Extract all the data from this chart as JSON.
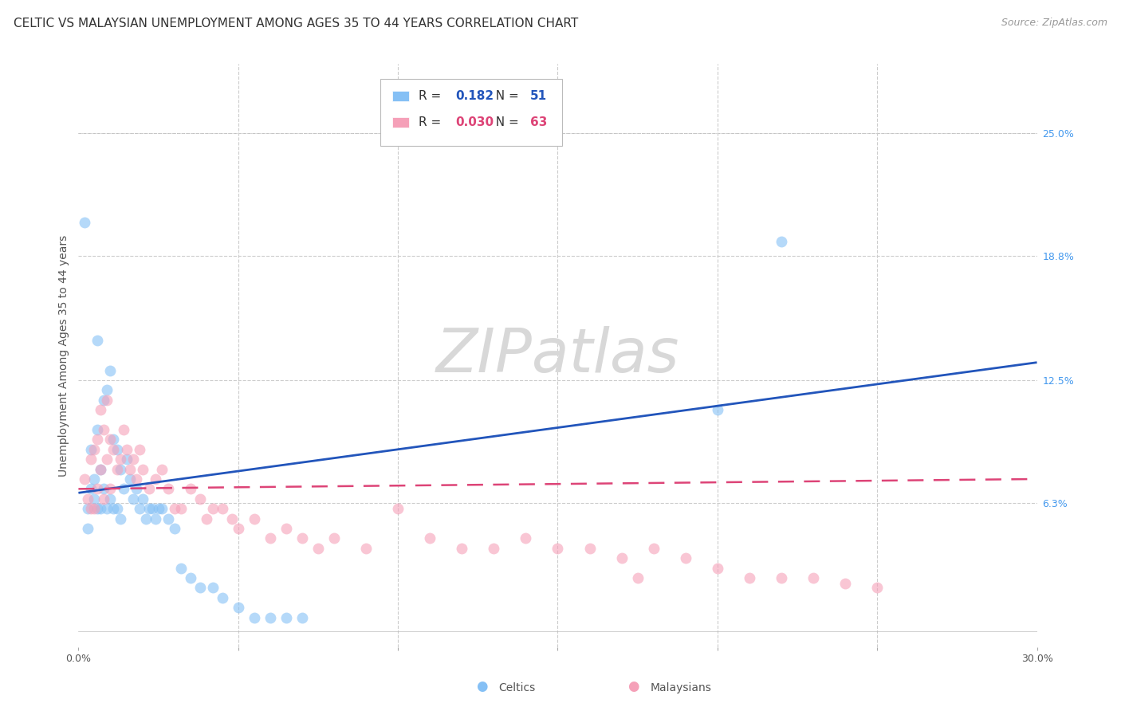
{
  "title": "CELTIC VS MALAYSIAN UNEMPLOYMENT AMONG AGES 35 TO 44 YEARS CORRELATION CHART",
  "source": "Source: ZipAtlas.com",
  "ylabel": "Unemployment Among Ages 35 to 44 years",
  "xlim": [
    0.0,
    0.3
  ],
  "ylim": [
    -0.01,
    0.285
  ],
  "xticks": [
    0.0,
    0.05,
    0.1,
    0.15,
    0.2,
    0.25,
    0.3
  ],
  "xtick_labels": [
    "0.0%",
    "",
    "",
    "",
    "",
    "",
    "30.0%"
  ],
  "right_yticks": [
    0.063,
    0.125,
    0.188,
    0.25
  ],
  "right_ytick_labels": [
    "6.3%",
    "12.5%",
    "18.8%",
    "25.0%"
  ],
  "celtics_color": "#85C0F5",
  "malaysians_color": "#F5A0B8",
  "celtics_line_color": "#2255BB",
  "malaysians_line_color": "#DD4477",
  "celtics_R": 0.182,
  "celtics_N": 51,
  "malaysians_R": 0.03,
  "malaysians_N": 63,
  "celtics_x": [
    0.002,
    0.003,
    0.003,
    0.004,
    0.004,
    0.005,
    0.005,
    0.006,
    0.006,
    0.006,
    0.007,
    0.007,
    0.008,
    0.008,
    0.009,
    0.009,
    0.01,
    0.01,
    0.011,
    0.011,
    0.012,
    0.012,
    0.013,
    0.013,
    0.014,
    0.015,
    0.016,
    0.017,
    0.018,
    0.019,
    0.02,
    0.021,
    0.022,
    0.023,
    0.024,
    0.025,
    0.026,
    0.028,
    0.03,
    0.032,
    0.035,
    0.038,
    0.042,
    0.045,
    0.05,
    0.055,
    0.06,
    0.065,
    0.07,
    0.2,
    0.22
  ],
  "celtics_y": [
    0.205,
    0.06,
    0.05,
    0.09,
    0.07,
    0.075,
    0.065,
    0.145,
    0.1,
    0.06,
    0.08,
    0.06,
    0.115,
    0.07,
    0.12,
    0.06,
    0.13,
    0.065,
    0.095,
    0.06,
    0.09,
    0.06,
    0.08,
    0.055,
    0.07,
    0.085,
    0.075,
    0.065,
    0.07,
    0.06,
    0.065,
    0.055,
    0.06,
    0.06,
    0.055,
    0.06,
    0.06,
    0.055,
    0.05,
    0.03,
    0.025,
    0.02,
    0.02,
    0.015,
    0.01,
    0.005,
    0.005,
    0.005,
    0.005,
    0.11,
    0.195
  ],
  "malaysians_x": [
    0.002,
    0.003,
    0.004,
    0.004,
    0.005,
    0.005,
    0.006,
    0.006,
    0.007,
    0.007,
    0.008,
    0.008,
    0.009,
    0.009,
    0.01,
    0.01,
    0.011,
    0.012,
    0.013,
    0.014,
    0.015,
    0.016,
    0.017,
    0.018,
    0.019,
    0.02,
    0.022,
    0.024,
    0.026,
    0.028,
    0.03,
    0.032,
    0.035,
    0.038,
    0.04,
    0.042,
    0.045,
    0.048,
    0.05,
    0.055,
    0.06,
    0.065,
    0.07,
    0.075,
    0.08,
    0.09,
    0.1,
    0.11,
    0.12,
    0.13,
    0.14,
    0.15,
    0.16,
    0.17,
    0.175,
    0.18,
    0.19,
    0.2,
    0.21,
    0.22,
    0.23,
    0.24,
    0.25
  ],
  "malaysians_y": [
    0.075,
    0.065,
    0.085,
    0.06,
    0.09,
    0.06,
    0.095,
    0.07,
    0.11,
    0.08,
    0.1,
    0.065,
    0.115,
    0.085,
    0.095,
    0.07,
    0.09,
    0.08,
    0.085,
    0.1,
    0.09,
    0.08,
    0.085,
    0.075,
    0.09,
    0.08,
    0.07,
    0.075,
    0.08,
    0.07,
    0.06,
    0.06,
    0.07,
    0.065,
    0.055,
    0.06,
    0.06,
    0.055,
    0.05,
    0.055,
    0.045,
    0.05,
    0.045,
    0.04,
    0.045,
    0.04,
    0.06,
    0.045,
    0.04,
    0.04,
    0.045,
    0.04,
    0.04,
    0.035,
    0.025,
    0.04,
    0.035,
    0.03,
    0.025,
    0.025,
    0.025,
    0.022,
    0.02
  ],
  "background_color": "#FFFFFF",
  "watermark_text": "ZIPatlas",
  "watermark_color": "#D8D8D8",
  "watermark_fontsize": 55,
  "title_fontsize": 11,
  "axis_label_fontsize": 10,
  "tick_fontsize": 9,
  "legend_fontsize": 11,
  "source_fontsize": 9,
  "marker_size": 100,
  "marker_alpha": 0.6
}
